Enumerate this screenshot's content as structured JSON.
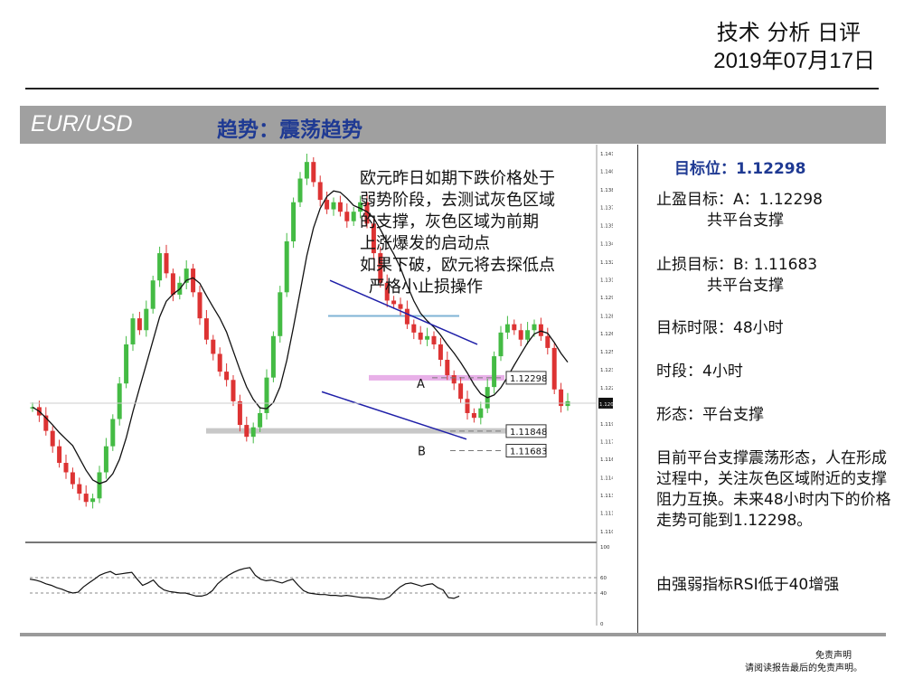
{
  "header": {
    "title": "技术 分析 日评",
    "date": "2019年07月17日"
  },
  "banner": {
    "pair": "EUR/USD",
    "trend": "趋势：震荡趋势"
  },
  "annotation": [
    "欧元昨日如期下跌价格处于",
    "弱势阶段，去测试灰色区域",
    "的支撑，灰色区域为前期",
    "上涨爆发的启动点",
    "如果下破，欧元将去探低点",
    "严格小止损操作"
  ],
  "panel": {
    "target": "目标位：1.12298",
    "take_profit": "止盈目标：A：1.12298",
    "take_profit_note": "共平台支撑",
    "stop_loss": "止损目标：B: 1.11683",
    "stop_loss_note": "共平台支撑",
    "time_limit": "目标时限：48小时",
    "timeframe": "时段：4小时",
    "pattern": "形态：平台支撑",
    "summary": "目前平台支撑震荡形态，人在形成过程中，关注灰色区域附近的支撑阻力互换。未来48小时内下的价格走势可能到1.12298。",
    "rsi_note": "由强弱指标RSI低于40增强"
  },
  "disclaimer": {
    "line1": "免责声明",
    "line2": "请阅读报告最后的免责声明。"
  },
  "chart_data": {
    "type": "candlestick",
    "instrument": "EUR/USD",
    "timeframe": "4小时",
    "y_ticks": [
      "1.14190",
      "1.14040",
      "1.13885",
      "1.13735",
      "1.13585",
      "1.13430",
      "1.13275",
      "1.13125",
      "1.12975",
      "1.12820",
      "1.12670",
      "1.12520",
      "1.12365",
      "1.12215",
      "1.12064",
      "1.11910",
      "1.11760",
      "1.11610",
      "1.11455",
      "1.11305",
      "1.11155",
      "1.11000"
    ],
    "ylim": [
      1.11,
      1.1419
    ],
    "current_price": "1.12084",
    "closes": [
      1.1205,
      1.1198,
      1.1185,
      1.1172,
      1.1158,
      1.115,
      1.114,
      1.1132,
      1.1125,
      1.1128,
      1.115,
      1.1172,
      1.1195,
      1.1225,
      1.1258,
      1.128,
      1.127,
      1.1288,
      1.1312,
      1.1335,
      1.1318,
      1.13,
      1.131,
      1.1322,
      1.1302,
      1.128,
      1.1262,
      1.125,
      1.1235,
      1.1228,
      1.121,
      1.119,
      1.118,
      1.1188,
      1.12,
      1.123,
      1.1265,
      1.1302,
      1.1345,
      1.1378,
      1.1398,
      1.1412,
      1.1395,
      1.138,
      1.1372,
      1.1378,
      1.137,
      1.1362,
      1.137,
      1.1378,
      1.136,
      1.1335,
      1.131,
      1.1295,
      1.1292,
      1.1288,
      1.1275,
      1.1268,
      1.1262,
      1.1265,
      1.1258,
      1.1245,
      1.1232,
      1.1225,
      1.1212,
      1.12,
      1.1196,
      1.1204,
      1.1222,
      1.1248,
      1.1268,
      1.1275,
      1.127,
      1.1262,
      1.127,
      1.1275,
      1.1265,
      1.1255,
      1.122,
      1.1206,
      1.121
    ],
    "levels": [
      {
        "label": "1.12298",
        "value": 1.12298,
        "marker": "A"
      },
      {
        "label": "1.11848",
        "value": 1.11848
      },
      {
        "label": "1.11683",
        "value": 1.11683,
        "marker": "B"
      }
    ],
    "rsi": {
      "y_ticks": [
        "100",
        "60",
        "40",
        "0"
      ],
      "ylim": [
        0,
        100
      ],
      "levels": [
        60,
        40
      ],
      "values": [
        58,
        57,
        55,
        52,
        50,
        47,
        45,
        42,
        40,
        41,
        48,
        53,
        58,
        63,
        66,
        68,
        64,
        65,
        66,
        67,
        58,
        50,
        53,
        57,
        49,
        44,
        42,
        41,
        40,
        40,
        38,
        36,
        36,
        38,
        43,
        52,
        58,
        63,
        67,
        70,
        72,
        73,
        63,
        58,
        56,
        57,
        55,
        53,
        56,
        58,
        50,
        43,
        40,
        39,
        38,
        38,
        37,
        37,
        36,
        37,
        36,
        35,
        34,
        34,
        33,
        32,
        32,
        35,
        42,
        48,
        52,
        53,
        51,
        49,
        51,
        52,
        47,
        44,
        34,
        33,
        36
      ]
    }
  }
}
